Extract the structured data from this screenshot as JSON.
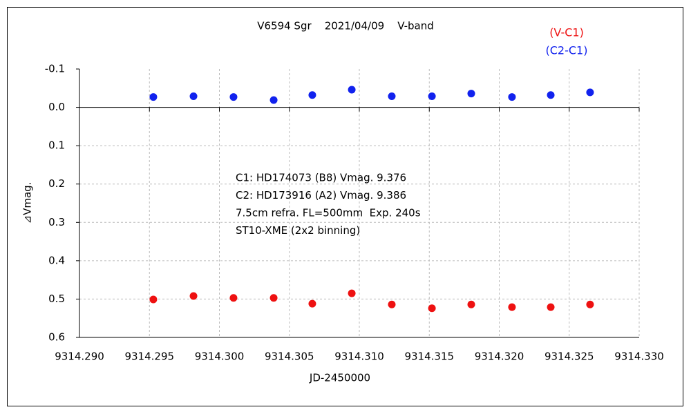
{
  "chart_data": {
    "type": "scatter",
    "title": "V6594 Sgr    2021/04/09    V-band",
    "x_label": "JD-2450000",
    "y_label": "⊿Vmag.",
    "annotations": [
      "C1: HD174073 (B8) Vmag. 9.376",
      "C2: HD173916 (A2) Vmag. 9.386",
      "7.5cm refra. FL=500mm  Exp. 240s",
      "ST10-XME (2x2 binning)"
    ],
    "x": [
      9314.29528,
      9314.29815,
      9314.30101,
      9314.30388,
      9314.30664,
      9314.30946,
      9314.31232,
      9314.31519,
      9314.318,
      9314.32091,
      9314.32368,
      9314.32649
    ],
    "series": [
      {
        "name": "(V-C1)",
        "color": "#ee1111",
        "values": [
          0.501,
          0.492,
          0.497,
          0.497,
          0.512,
          0.485,
          0.514,
          0.524,
          0.514,
          0.521,
          0.521,
          0.514
        ]
      },
      {
        "name": "(C2-C1)",
        "color": "#1122ee",
        "values": [
          -0.027,
          -0.029,
          -0.027,
          -0.019,
          -0.032,
          -0.046,
          -0.029,
          -0.029,
          -0.036,
          -0.027,
          -0.032,
          -0.039
        ]
      }
    ],
    "xlim": [
      9314.29,
      9314.33
    ],
    "xticks": [
      {
        "value": 9314.29,
        "label": "9314.290"
      },
      {
        "value": 9314.295,
        "label": "9314.295"
      },
      {
        "value": 9314.3,
        "label": "9314.300"
      },
      {
        "value": 9314.305,
        "label": "9314.305"
      },
      {
        "value": 9314.31,
        "label": "9314.310"
      },
      {
        "value": 9314.315,
        "label": "9314.315"
      },
      {
        "value": 9314.32,
        "label": "9314.320"
      },
      {
        "value": 9314.325,
        "label": "9314.325"
      },
      {
        "value": 9314.33,
        "label": "9314.330"
      }
    ],
    "ylim": [
      -0.1,
      0.6
    ],
    "yticks": [
      -0.1,
      {
        "value": 0,
        "label": "0.0"
      },
      0.1,
      0.2,
      0.3,
      0.4,
      0.5,
      0.6
    ],
    "y_inverted": true,
    "grid": true,
    "legend": "top-right"
  }
}
